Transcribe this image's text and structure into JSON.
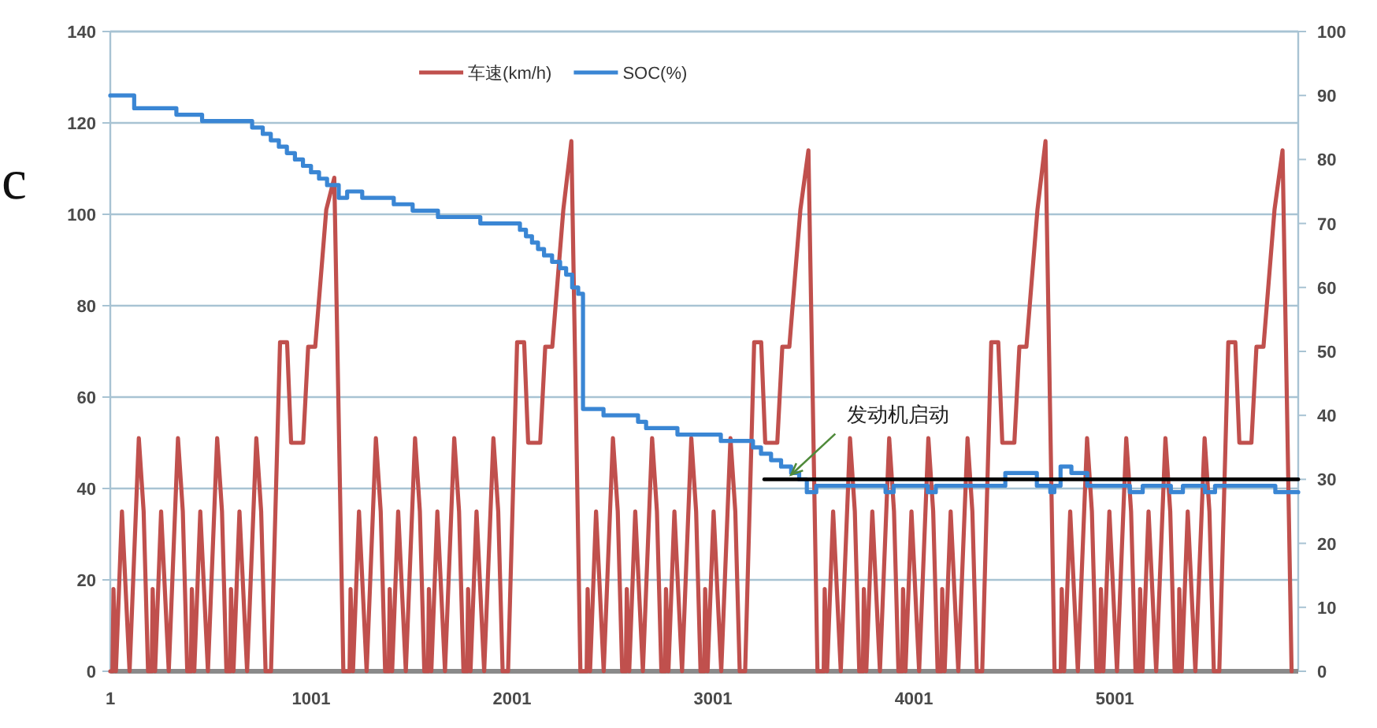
{
  "chart_data": {
    "type": "line",
    "xlim": [
      1,
      5914
    ],
    "xticks": [
      1,
      1001,
      2001,
      3001,
      4001,
      5001
    ],
    "ylim": [
      0,
      140
    ],
    "yticks": [
      0,
      20,
      40,
      60,
      80,
      100,
      120,
      140
    ],
    "y2lim": [
      0,
      100
    ],
    "y2ticks": [
      0,
      10,
      20,
      30,
      40,
      50,
      60,
      70,
      80,
      90,
      100
    ],
    "grid": "y",
    "legend": "top",
    "annotations": [
      {
        "text": "发动机启动",
        "x": 3390,
        "y": 43
      },
      "c"
    ],
    "series": [
      {
        "name": "车速(km/h)",
        "color": "#c0504d",
        "x": [
          1,
          12,
          17,
          29,
          59,
          97,
          143,
          167,
          189,
          207,
          212,
          224,
          254,
          292,
          338,
          362,
          384,
          402,
          407,
          419,
          449,
          487,
          533,
          557,
          579,
          597,
          602,
          614,
          644,
          682,
          728,
          752,
          774,
          801,
          846,
          881,
          901,
          961,
          986,
          1021,
          1076,
          1116,
          1161,
          1192,
          1197,
          1209,
          1239,
          1277,
          1323,
          1347,
          1369,
          1387,
          1392,
          1404,
          1434,
          1472,
          1518,
          1542,
          1564,
          1582,
          1587,
          1599,
          1629,
          1667,
          1713,
          1737,
          1759,
          1777,
          1782,
          1794,
          1824,
          1862,
          1908,
          1932,
          1954,
          1981,
          2026,
          2061,
          2081,
          2141,
          2166,
          2201,
          2256,
          2296,
          2341,
          2372,
          2377,
          2389,
          2419,
          2457,
          2503,
          2527,
          2549,
          2567,
          2572,
          2584,
          2614,
          2652,
          2698,
          2722,
          2744,
          2762,
          2767,
          2779,
          2809,
          2847,
          2893,
          2917,
          2939,
          2957,
          2962,
          2974,
          3004,
          3042,
          3088,
          3112,
          3134,
          3161,
          3206,
          3241,
          3261,
          3321,
          3346,
          3381,
          3436,
          3476,
          3521,
          3552,
          3557,
          3569,
          3599,
          3637,
          3683,
          3707,
          3729,
          3747,
          3752,
          3764,
          3794,
          3832,
          3878,
          3902,
          3924,
          3942,
          3947,
          3959,
          3989,
          4027,
          4073,
          4097,
          4119,
          4137,
          4142,
          4154,
          4184,
          4222,
          4268,
          4292,
          4314,
          4341,
          4386,
          4421,
          4441,
          4501,
          4526,
          4561,
          4616,
          4656,
          4701,
          4732,
          4737,
          4749,
          4779,
          4817,
          4863,
          4887,
          4909,
          4927,
          4932,
          4944,
          4974,
          5012,
          5058,
          5082,
          5104,
          5122,
          5127,
          5139,
          5169,
          5207,
          5253,
          5277,
          5299,
          5317,
          5322,
          5334,
          5364,
          5402,
          5448,
          5472,
          5494,
          5521,
          5566,
          5601,
          5621,
          5681,
          5706,
          5741,
          5796,
          5836,
          5881
        ],
        "values": [
          0,
          0,
          18,
          0,
          35,
          0,
          51,
          35,
          0,
          0,
          18,
          0,
          35,
          0,
          51,
          35,
          0,
          0,
          18,
          0,
          35,
          0,
          51,
          35,
          0,
          0,
          18,
          0,
          35,
          0,
          51,
          35,
          0,
          0,
          72,
          72,
          50,
          50,
          71,
          71,
          101,
          108,
          0,
          0,
          18,
          0,
          35,
          0,
          51,
          35,
          0,
          0,
          18,
          0,
          35,
          0,
          51,
          35,
          0,
          0,
          18,
          0,
          35,
          0,
          51,
          35,
          0,
          0,
          18,
          0,
          35,
          0,
          51,
          35,
          0,
          0,
          72,
          72,
          50,
          50,
          71,
          71,
          101,
          116,
          0,
          0,
          18,
          0,
          35,
          0,
          51,
          35,
          0,
          0,
          18,
          0,
          35,
          0,
          51,
          35,
          0,
          0,
          18,
          0,
          35,
          0,
          51,
          35,
          0,
          0,
          18,
          0,
          35,
          0,
          51,
          35,
          0,
          0,
          72,
          72,
          50,
          50,
          71,
          71,
          101,
          114,
          0,
          0,
          18,
          0,
          35,
          0,
          51,
          35,
          0,
          0,
          18,
          0,
          35,
          0,
          51,
          35,
          0,
          0,
          18,
          0,
          35,
          0,
          51,
          35,
          0,
          0,
          18,
          0,
          35,
          0,
          51,
          35,
          0,
          0,
          72,
          72,
          50,
          50,
          71,
          71,
          101,
          116,
          0,
          0,
          18,
          0,
          35,
          0,
          51,
          35,
          0,
          0,
          18,
          0,
          35,
          0,
          51,
          35,
          0,
          0,
          18,
          0,
          35,
          0,
          51,
          35,
          0,
          0,
          18,
          0,
          35,
          0,
          51,
          35,
          0,
          0,
          72,
          72,
          50,
          50,
          71,
          71,
          101,
          114,
          0
        ]
      },
      {
        "name": "SOC(%)",
        "type": "step",
        "axis": "y2",
        "color": "#3a86d4",
        "x": [
          1,
          120,
          330,
          458,
          707,
          760,
          800,
          840,
          880,
          920,
          960,
          1000,
          1040,
          1080,
          1138,
          1180,
          1255,
          1412,
          1506,
          1632,
          1843,
          2040,
          2070,
          2100,
          2130,
          2160,
          2200,
          2240,
          2270,
          2300,
          2330,
          2354,
          2456,
          2628,
          2668,
          2824,
          3040,
          3200,
          3240,
          3290,
          3340,
          3390,
          3430,
          3468,
          3515,
          3860,
          3900,
          4070,
          4110,
          4456,
          4613,
          4680,
          4700,
          4731,
          4785,
          4864,
          5076,
          5140,
          5280,
          5340,
          5450,
          5500,
          5800,
          5914
        ],
        "values": [
          90,
          88,
          87,
          86,
          85,
          84,
          83,
          82,
          81,
          80,
          79,
          78,
          77,
          76,
          74,
          75,
          74,
          73,
          72,
          71,
          70,
          69,
          68,
          67,
          66,
          65,
          64,
          63,
          62,
          60,
          59,
          41,
          40,
          39,
          38,
          37,
          36,
          35,
          34,
          33,
          32,
          31,
          30,
          28,
          29,
          28,
          29,
          28,
          29,
          31,
          29,
          28,
          29,
          32,
          31,
          29,
          28,
          29,
          28,
          29,
          28,
          29,
          28,
          28
        ]
      },
      {
        "type": "line",
        "axis": "y2",
        "color": "#000000",
        "x": [
          3256,
          5914
        ],
        "values": [
          30,
          30
        ]
      }
    ]
  }
}
